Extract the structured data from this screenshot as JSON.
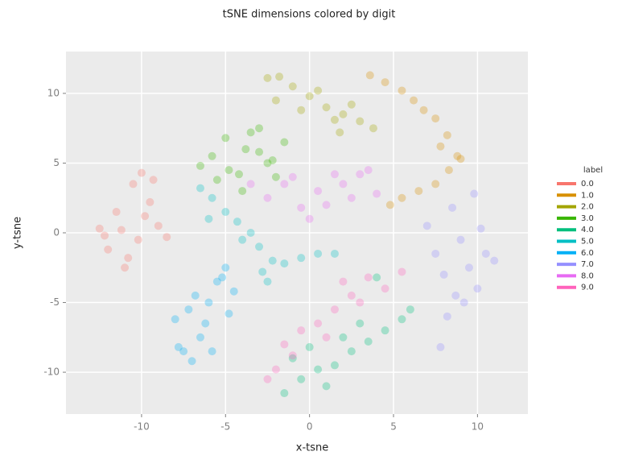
{
  "chart_data": {
    "type": "scatter",
    "title": "tSNE dimensions colored by digit",
    "xlabel": "x-tsne",
    "ylabel": "y-tsne",
    "legend_title": "label",
    "legend_position": "right",
    "xlim": [
      -14.5,
      13.0
    ],
    "xticks": [
      -10,
      -5,
      0,
      5,
      10
    ],
    "ylim": [
      -13.0,
      13.0
    ],
    "yticks": [
      -10,
      -5,
      0,
      5,
      10
    ],
    "grid": true,
    "series": [
      {
        "name": "0.0",
        "color": "#F8766D",
        "x": [
          -12.5,
          -12,
          -11.5,
          -11,
          -10.5,
          -10,
          -9.5,
          -9,
          -10.2,
          -11.2,
          -9.8,
          -8.5,
          -12.2,
          -10.8,
          -9.3
        ],
        "y": [
          0.3,
          -1.2,
          1.5,
          -2.5,
          3.5,
          4.3,
          2.2,
          0.5,
          -0.5,
          0.2,
          1.2,
          -0.3,
          -0.2,
          -1.8,
          3.8
        ]
      },
      {
        "name": "1.0",
        "color": "#D89000",
        "x": [
          3.6,
          4.5,
          5.5,
          6.2,
          6.8,
          7.5,
          8.2,
          8.8,
          9.0,
          8.3,
          7.5,
          6.5,
          5.5,
          4.8,
          7.8
        ],
        "y": [
          11.3,
          10.8,
          10.2,
          9.5,
          8.8,
          8.2,
          7.0,
          5.5,
          5.3,
          4.5,
          3.5,
          3.0,
          2.5,
          2.0,
          6.2
        ]
      },
      {
        "name": "2.0",
        "color": "#A3A500",
        "x": [
          -2.5,
          -1.8,
          -1,
          0,
          1,
          2,
          3,
          2.5,
          1.5,
          -0.5,
          3.8,
          0.5,
          -2,
          1.8
        ],
        "y": [
          11.1,
          11.2,
          10.5,
          9.8,
          9.0,
          8.5,
          8.0,
          9.2,
          8.1,
          8.8,
          7.5,
          10.2,
          9.5,
          7.2
        ]
      },
      {
        "name": "3.0",
        "color": "#39B600",
        "x": [
          -6.5,
          -5.8,
          -5,
          -4.2,
          -3.5,
          -3,
          -2.5,
          -2,
          -1.5,
          -4,
          -3,
          -5.5,
          -2.2,
          -4.8,
          -3.8
        ],
        "y": [
          4.8,
          5.5,
          6.8,
          4.2,
          7.2,
          7.5,
          5.0,
          4.0,
          6.5,
          3.0,
          5.8,
          3.8,
          5.2,
          4.5,
          6.0
        ]
      },
      {
        "name": "4.0",
        "color": "#00BF7D",
        "x": [
          -1.5,
          -0.5,
          0.5,
          1.5,
          2.5,
          3.5,
          4.5,
          5.5,
          6,
          -1,
          0,
          2,
          3,
          4,
          1
        ],
        "y": [
          -11.5,
          -10.5,
          -9.8,
          -9.5,
          -8.5,
          -7.8,
          -7,
          -6.2,
          -5.5,
          -9,
          -8.2,
          -7.5,
          -6.5,
          -3.2,
          -11
        ]
      },
      {
        "name": "5.0",
        "color": "#00BFC4",
        "x": [
          -6.5,
          -5.8,
          -5,
          -4.3,
          -3.5,
          -3,
          -2.2,
          -1.5,
          -0.5,
          0.5,
          1.5,
          -4,
          -2.5,
          -2.8,
          -6
        ],
        "y": [
          3.2,
          2.5,
          1.5,
          0.8,
          0.0,
          -1.0,
          -2.0,
          -2.2,
          -1.8,
          -1.5,
          -1.5,
          -0.5,
          -3.5,
          -2.8,
          1.0
        ]
      },
      {
        "name": "6.0",
        "color": "#00B0F6",
        "x": [
          -8,
          -7.5,
          -7,
          -6.5,
          -6,
          -5.5,
          -5,
          -4.5,
          -7.2,
          -6.2,
          -5.2,
          -7.8,
          -6.8,
          -4.8,
          -5.8
        ],
        "y": [
          -6.2,
          -8.5,
          -9.2,
          -7.5,
          -5,
          -3.5,
          -2.5,
          -4.2,
          -5.5,
          -6.5,
          -3.2,
          -8.2,
          -4.5,
          -5.8,
          -8.5
        ]
      },
      {
        "name": "7.0",
        "color": "#9590FF",
        "x": [
          7,
          7.5,
          8,
          8.5,
          9,
          9.5,
          10,
          10.5,
          11,
          8.2,
          9.2,
          7.8,
          10.2,
          8.7,
          9.8
        ],
        "y": [
          0.5,
          -1.5,
          -3,
          1.8,
          -0.5,
          -2.5,
          -4,
          -1.5,
          -2,
          -6,
          -5,
          -8.2,
          0.3,
          -4.5,
          2.8
        ]
      },
      {
        "name": "8.0",
        "color": "#E76BF3",
        "x": [
          -2.5,
          -1.5,
          -0.5,
          0.5,
          1.5,
          2.5,
          3.5,
          0,
          1,
          2,
          -1,
          3,
          -3.5,
          4
        ],
        "y": [
          2.5,
          3.5,
          1.8,
          3.0,
          4.2,
          2.5,
          4.5,
          1.0,
          2.0,
          3.5,
          4.0,
          4.2,
          3.5,
          2.8
        ]
      },
      {
        "name": "9.0",
        "color": "#FF62BC",
        "x": [
          -2.5,
          -2,
          -1.5,
          -0.5,
          0.5,
          1.5,
          2.5,
          3.5,
          4.5,
          5.5,
          -1,
          1,
          3,
          2
        ],
        "y": [
          -10.5,
          -9.8,
          -8,
          -7,
          -6.5,
          -5.5,
          -4.5,
          -3.2,
          -4,
          -2.8,
          -8.8,
          -7.5,
          -5,
          -3.5
        ]
      }
    ]
  }
}
